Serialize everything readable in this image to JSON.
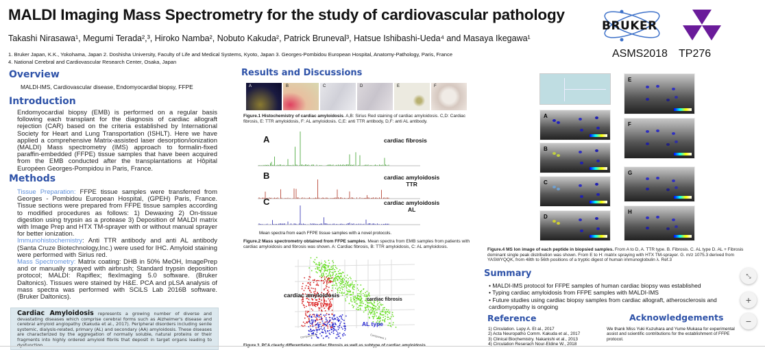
{
  "header": {
    "title": "MALDI Imaging Mass Spectrometry for the study of cardiovascular pathology",
    "authors": "Takashi Nirasawa¹, Megumi Terada²,³, Hiroko Namba², Nobuto Kakuda², Patrick Bruneval³, Hatsue Ishibashi-Ueda⁴ and Masaya Ikegawa¹",
    "affiliations_1": "1.  Bruker Japan, K.K., Yokohama, Japan 2. Doshisha University, Faculty of Life and Medical Systems, Kyoto, Japan 3. Georges-Pombidou European Hospital, Anatomy-Pathology, Paris, France",
    "affiliations_2": "4. National Cerebral and Cardiovascular Research Center, Osaka, Japan",
    "logo_text": "BRUKER",
    "conference": "ASMS2018",
    "poster_id": "TP276"
  },
  "overview": {
    "heading": "Overview",
    "keywords": "MALDI-IMS, Cardiovascular disease, Endomyocardial  biopsy, FFPE"
  },
  "introduction": {
    "heading": "Introduction",
    "text": "Endomyocardial biopsy (EMB) is performed on a regular basis following each transplant for the diagnosis of cardiac allograft rejection (CAR) based on the criteria established by International Society for Heart and Lung Transportation (ISHLT). Here we have applied a comprehensive Matrix-assisted laser desorption/ionization (MALDI) Mass spectrometry (IMS) approach to formalin-fixed paraffin-embedded (FFPE) tissue samples that have been acquired from the EMB conducted after the transplantations at Hôpital Européen Georges-Pompidou in Paris, France."
  },
  "methods": {
    "heading": "Methods",
    "tissue_label": "Tissue Preparation:",
    "tissue_text": " FFPE tissue samples were transferred from Georges - Pombidou European Hospital, (GPEH) Paris, France. Tissue sections were prepared from FFPE tissue samples according to modified procedures as follows: 1) Dewaxing 2) On-tissue digestion using trypsin as a protease 3) Deposition of MALDI matrix  with Image Prep and HTX TM-sprayer with or without manual sprayer for better ionization.",
    "ihc_label": "Immunohistochemistry",
    "ihc_text": ": Anti TTR antibody and anti AL antibody (Santa Cruze Biotechnology,Inc.) were used for IHC. Amyloid staining were performed with Sirius red.",
    "ms_label": "Mass Spectrometry:",
    "ms_text": " Matrix coating: DHB in 50% MeOH, ImagePrep and or manually sprayed with airbrush; Standard trypsin deposition protocol; MALDI: Rapiflex; flexImaging 5.0 software. (Bruker Daltonics). Tissues were stained by H&E. PCA and pLSA analysis of mass spectra was performed with SCiLS Lab 2016B software. (Bruker Daltonics)."
  },
  "amyloid_box": {
    "title": "Cardiac Amyloidosis",
    "text": " represents a growing number of diverse and devastating diseases which comprise cerebral forms such as Alzheimer's disease and cerebral amyloid angiopathy (Kakuda et al., 2017). Peripheral disorders including senile systemic, dialysis-related, primary (AL) and secondary (AA) amyloidosis. These diseases are characterized by the aggregation of normally soluble, natural proteins or their fragments into highly ordered amyloid fibrils that deposit in target organs leading to dysfunction."
  },
  "results": {
    "heading": "Results and Discussions",
    "fig1": {
      "panels": [
        "A",
        "B",
        "C",
        "D",
        "E",
        "F"
      ],
      "caption_bold": "Figure.1 Histochemistry of cardiac amyloidosis",
      "caption": ". A,B: Sirius Red staining of cardiac amyloidosis. C,D: Cardiac fibrosis, E: TTR amyloidosis, F: AL amyloidosis. C,E: anti TTR antibody, D,F: anti AL antibody."
    },
    "fig2": {
      "spectra": [
        {
          "letter": "A",
          "label": "cardiac fibrosis",
          "color": "#3aa02a"
        },
        {
          "letter": "B",
          "label": "cardiac amyloidosis\nTTR",
          "color": "#b0301e"
        },
        {
          "letter": "C",
          "label": "cardiac amyloidosis\nAL",
          "color": "#2a2ab0"
        }
      ],
      "note": "Mean spectra from each FFPE tissue samples with a novel protocols.",
      "caption_bold": "Figure.2 Mass spectrometry obtained from FFPE samples",
      "caption": ". Mean spectra from EMB samples from patients with cardiac amyloidosis and fibrosis was shown. A: Cardiac fibrosis, B: TTR amyloidosis, C: AL amyloidosis."
    },
    "fig3": {
      "label_amyloid": "cardiac amyloidosis",
      "label_ttr": "TTR type",
      "label_fibrosis": "cardiac fibrosis",
      "label_al": "AL type",
      "axis_x": "Component 1",
      "axis_y": "Component 3",
      "caption": "Figure 3. PCA clearly differentiates cardiac fibrosis as well as subtype of cardiac amyloidosis"
    },
    "fig4": {
      "left_panels": [
        "A",
        "B",
        "C",
        "D"
      ],
      "right_panels": [
        "E",
        "F",
        "G",
        "H"
      ],
      "caption_bold": "Figure.4 MS Ion image of each peptide in biopsied samples.",
      "caption": " From A to D, A. TTR type. B. Fibrosis. C. AL type D. AL + Fibrosis dominant single peak distribution was shown. From E to H: matrix spraying with HTX  TM-sprayer. G. m/z 1075.3 derived from YASWYQQK, from 48th to 56th positions of a tryptic digest of human immunoglobulin λ. Ref.3"
    }
  },
  "summary": {
    "heading": "Summary",
    "items": [
      "MALDI-IMS protocol for FFPE samples of human cardiac biopsy was established",
      "Typing cardiac amyloidosis from FFPE samples with MALDI-IMS",
      "Future studies using cardiac biopsy samples from cardiac allograft, atherosclerosis and cardiomyopathy is ongoing"
    ]
  },
  "reference": {
    "heading": "Reference",
    "items": [
      "1) Circulation. Lupy A. Et al., 2017",
      "2) Acta Neuropatho Comm. Kakuda et al., 2017",
      "3) Clinical Biochemistry. Nakanishi et al., 2013",
      "4) Circulation Reserach Nour-Eldine W., 2018"
    ]
  },
  "acknowledgements": {
    "heading": "Acknowledgements",
    "text": "We thank Miss Yuki Kuzuhara and Yume Mukasa for experimental assist and scientific contributions for the establishment of FFPE protocol."
  },
  "colors": {
    "heading": "#2e52a8",
    "method_label": "#5f8fd8",
    "box_bg": "#dce8ee",
    "bruker_blue": "#3a6fc8",
    "logo_purple": "#6a1b9a"
  },
  "controls": {
    "fit_icon": "collapse-icon",
    "zoom_in_icon": "plus-icon",
    "zoom_out_icon": "minus-icon",
    "zoom_in": "+",
    "zoom_out": "−"
  }
}
